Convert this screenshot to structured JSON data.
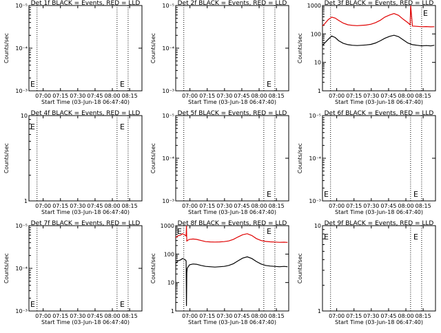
{
  "figure": {
    "title": ""
  },
  "chart_data": [
    {
      "type": "line",
      "panel": 1,
      "title": "Det 1f BLACK = Events, RED = LLD",
      "xlabel": "Start Time (03-Jun-18 06:47:40)",
      "ylabel": "Counts/sec",
      "yscale": "log",
      "ylim": [
        0.001,
        1e-05
      ],
      "ytick_labels": [
        "10⁻³",
        "10⁻⁴",
        "10⁻⁵"
      ],
      "xtick_labels": [
        "07:00",
        "07:15",
        "07:30",
        "07:45",
        "08:00",
        "08:15"
      ],
      "x_minutes": [
        12.33,
        27.33,
        42.33,
        57.33,
        72.33,
        87.33
      ],
      "xlim_minutes": [
        0,
        98
      ],
      "vlines_minutes": [
        7,
        76.4,
        86
      ],
      "series": [],
      "annotations": [
        "E",
        "E"
      ]
    },
    {
      "type": "line",
      "panel": 2,
      "title": "Det 2f BLACK = Events, RED = LLD",
      "xlabel": "Start Time (03-Jun-18 06:47:40)",
      "ylabel": "Counts/sec",
      "yscale": "log",
      "ylim": [
        0.001,
        1e-05
      ],
      "ytick_labels": [
        "10⁻³",
        "10⁻⁴",
        "10⁻⁵"
      ],
      "xtick_labels": [
        "07:00",
        "07:15",
        "07:30",
        "07:45",
        "08:00",
        "08:15"
      ],
      "x_minutes": [
        12.33,
        27.33,
        42.33,
        57.33,
        72.33,
        87.33
      ],
      "xlim_minutes": [
        0,
        98
      ],
      "vlines_minutes": [
        7,
        76.4,
        86
      ],
      "series": [],
      "annotations": [
        "E"
      ]
    },
    {
      "type": "line",
      "panel": 3,
      "title": "Det 3f BLACK = Events, RED = LLD",
      "xlabel": "Start Time (03-Jun-18 06:47:40)",
      "ylabel": "Counts/sec",
      "yscale": "log",
      "ylim": [
        1,
        1000
      ],
      "ytick_labels": [
        "1",
        "10",
        "100",
        "1000"
      ],
      "xtick_labels": [
        "07:00",
        "07:15",
        "07:30",
        "07:45",
        "08:00",
        "08:15"
      ],
      "x_minutes": [
        12.33,
        27.33,
        42.33,
        57.33,
        72.33,
        87.33
      ],
      "xlim_minutes": [
        0,
        98
      ],
      "vlines_minutes": [
        7,
        76.4,
        86
      ],
      "series": [
        {
          "name": "LLD",
          "color": "#e00000",
          "x": [
            0,
            2,
            5,
            8,
            11,
            14,
            18,
            22,
            26,
            30,
            34,
            38,
            42,
            46,
            50,
            54,
            58,
            62,
            66,
            70,
            74,
            76,
            76.5,
            78,
            82,
            86,
            90,
            94,
            97
          ],
          "y": [
            190,
            230,
            320,
            390,
            360,
            300,
            240,
            210,
            200,
            195,
            200,
            205,
            220,
            250,
            300,
            390,
            460,
            520,
            450,
            330,
            250,
            210,
            1000,
            190,
            185,
            180,
            182,
            178,
            180
          ]
        },
        {
          "name": "Events",
          "color": "#000000",
          "x": [
            0,
            2,
            5,
            8,
            11,
            14,
            18,
            22,
            26,
            30,
            34,
            38,
            42,
            46,
            50,
            54,
            58,
            62,
            66,
            70,
            74,
            78,
            82,
            86,
            90,
            94,
            97
          ],
          "y": [
            40,
            48,
            65,
            85,
            75,
            58,
            47,
            42,
            40,
            39,
            40,
            41,
            43,
            48,
            57,
            70,
            82,
            90,
            80,
            62,
            48,
            42,
            40,
            38,
            39,
            38,
            40
          ]
        }
      ],
      "annotations": [
        "E"
      ]
    },
    {
      "type": "line",
      "panel": 4,
      "title": "Det 4f BLACK = Events, RED = LLD",
      "xlabel": "Start Time (03-Jun-18 06:47:40)",
      "ylabel": "Counts/sec",
      "yscale": "log",
      "ylim": [
        1,
        10
      ],
      "ytick_labels": [
        "1",
        "10"
      ],
      "xtick_labels": [
        "07:00",
        "07:15",
        "07:30",
        "07:45",
        "08:00",
        "08:15"
      ],
      "x_minutes": [
        12.33,
        27.33,
        42.33,
        57.33,
        72.33,
        87.33
      ],
      "xlim_minutes": [
        0,
        98
      ],
      "vlines_minutes": [
        7,
        76.4,
        86
      ],
      "series": [],
      "annotations": [
        "E",
        "E"
      ]
    },
    {
      "type": "line",
      "panel": 5,
      "title": "Det 5f BLACK = Events, RED = LLD",
      "xlabel": "Start Time (03-Jun-18 06:47:40)",
      "ylabel": "Counts/sec",
      "yscale": "log",
      "ylim": [
        0.001,
        1e-05
      ],
      "ytick_labels": [
        "10⁻³",
        "10⁻⁴",
        "10⁻⁵"
      ],
      "xtick_labels": [
        "07:00",
        "07:15",
        "07:30",
        "07:45",
        "08:00",
        "08:15"
      ],
      "x_minutes": [
        12.33,
        27.33,
        42.33,
        57.33,
        72.33,
        87.33
      ],
      "xlim_minutes": [
        0,
        98
      ],
      "vlines_minutes": [
        7,
        76.4,
        86
      ],
      "series": [],
      "annotations": [
        "E"
      ]
    },
    {
      "type": "line",
      "panel": 6,
      "title": "Det 6f BLACK = Events, RED = LLD",
      "xlabel": "Start Time (03-Jun-18 06:47:40)",
      "ylabel": "Counts/sec",
      "yscale": "log",
      "ylim": [
        0.001,
        1e-05
      ],
      "ytick_labels": [
        "10⁻³",
        "10⁻⁴",
        "10⁻⁵"
      ],
      "xtick_labels": [
        "07:00",
        "07:15",
        "07:30",
        "07:45",
        "08:00",
        "08:15"
      ],
      "x_minutes": [
        12.33,
        27.33,
        42.33,
        57.33,
        72.33,
        87.33
      ],
      "xlim_minutes": [
        0,
        98
      ],
      "vlines_minutes": [
        7,
        76.4,
        86
      ],
      "series": [],
      "annotations": [
        "E",
        "E"
      ]
    },
    {
      "type": "line",
      "panel": 7,
      "title": "Det 7f BLACK = Events, RED = LLD",
      "xlabel": "Start Time (03-Jun-18 06:47:40)",
      "ylabel": "Counts/sec",
      "yscale": "log",
      "ylim": [
        0.001,
        1e-05
      ],
      "ytick_labels": [
        "10⁻³",
        "10⁻⁴",
        "10⁻⁵"
      ],
      "xtick_labels": [
        "07:00",
        "07:15",
        "07:30",
        "07:45",
        "08:00",
        "08:15"
      ],
      "x_minutes": [
        12.33,
        27.33,
        42.33,
        57.33,
        72.33,
        87.33
      ],
      "xlim_minutes": [
        0,
        98
      ],
      "vlines_minutes": [
        7,
        76.4,
        86
      ],
      "series": [],
      "annotations": [
        "E",
        "E"
      ]
    },
    {
      "type": "line",
      "panel": 8,
      "title": "Det 8f BLACK = Events, RED = LLD",
      "xlabel": "Start Time (03-Jun-18 06:47:40)",
      "ylabel": "Counts/sec",
      "yscale": "log",
      "ylim": [
        1,
        1000
      ],
      "ytick_labels": [
        "1",
        "10",
        "100",
        "1000"
      ],
      "xtick_labels": [
        "07:00",
        "07:15",
        "07:30",
        "07:45",
        "08:00",
        "08:15"
      ],
      "x_minutes": [
        12.33,
        27.33,
        42.33,
        57.33,
        72.33,
        87.33
      ],
      "xlim_minutes": [
        0,
        98
      ],
      "vlines_minutes": [
        7,
        76.4,
        86
      ],
      "series": [
        {
          "name": "LLD",
          "color": "#e00000",
          "x": [
            0,
            2,
            4,
            6,
            8,
            9,
            9.3,
            9.6,
            10,
            12,
            15,
            18,
            22,
            26,
            30,
            34,
            38,
            42,
            46,
            50,
            54,
            58,
            62,
            66,
            70,
            74,
            78,
            82,
            86,
            90,
            94,
            97
          ],
          "y": [
            380,
            440,
            460,
            520,
            470,
            430,
            1000,
            280,
            300,
            330,
            340,
            330,
            300,
            275,
            268,
            265,
            268,
            275,
            290,
            330,
            400,
            480,
            520,
            450,
            350,
            300,
            280,
            270,
            265,
            260,
            262,
            258
          ]
        },
        {
          "name": "Events",
          "color": "#000000",
          "x": [
            0,
            2,
            4,
            6,
            8,
            9,
            9.3,
            9.6,
            10,
            12,
            15,
            18,
            22,
            26,
            30,
            34,
            38,
            42,
            46,
            50,
            54,
            58,
            62,
            66,
            70,
            74,
            78,
            82,
            86,
            90,
            94,
            97
          ],
          "y": [
            48,
            58,
            62,
            70,
            64,
            58,
            1.5,
            22,
            32,
            42,
            45,
            44,
            40,
            37,
            36,
            35,
            36,
            37,
            40,
            46,
            58,
            72,
            80,
            70,
            55,
            45,
            40,
            38,
            37,
            36,
            37,
            36
          ]
        }
      ],
      "annotations": [
        "E",
        "E"
      ]
    },
    {
      "type": "line",
      "panel": 9,
      "title": "Det 9f BLACK = Events, RED = LLD",
      "xlabel": "Start Time (03-Jun-18 06:47:40)",
      "ylabel": "Counts/sec",
      "yscale": "log",
      "ylim": [
        1,
        10
      ],
      "ytick_labels": [
        "1",
        "10"
      ],
      "xtick_labels": [
        "07:00",
        "07:15",
        "07:30",
        "07:45",
        "08:00",
        "08:15"
      ],
      "x_minutes": [
        12.33,
        27.33,
        42.33,
        57.33,
        72.33,
        87.33
      ],
      "xlim_minutes": [
        0,
        98
      ],
      "vlines_minutes": [
        7,
        76.4,
        86
      ],
      "series": [],
      "annotations": [
        "E",
        "E"
      ]
    }
  ]
}
